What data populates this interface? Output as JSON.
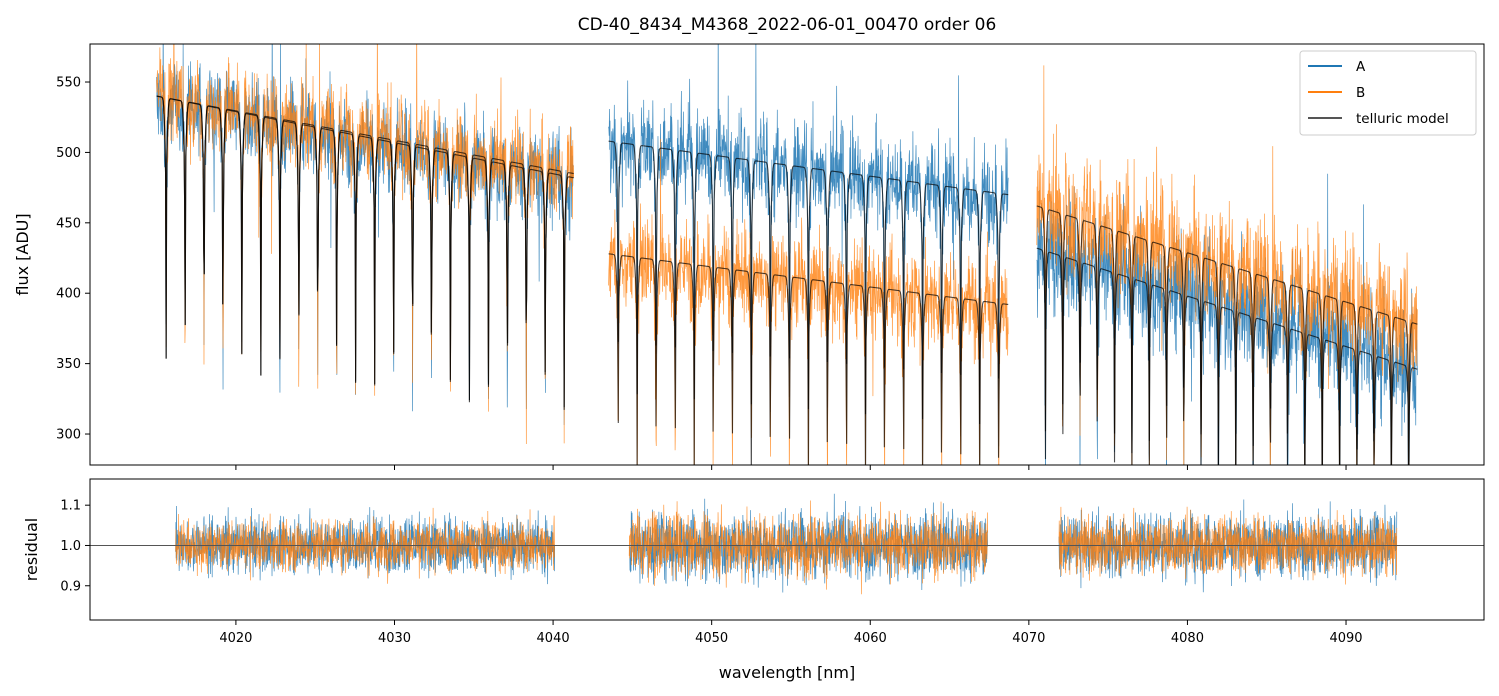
{
  "chart_data": {
    "type": "line",
    "title": "CD-40_8434_M4368_2022-06-01_00470  order 06",
    "xlabel": "wavelength [nm]",
    "xlim": [
      4010.8,
      4098.7
    ],
    "x_ticks": [
      4020,
      4030,
      4040,
      4050,
      4060,
      4070,
      4080,
      4090
    ],
    "x_tick_labels": [
      "4020",
      "4030",
      "4040",
      "4050",
      "4060",
      "4070",
      "4080",
      "4090"
    ],
    "colors": {
      "A": "#1f77b4",
      "B": "#ff7f0e",
      "model": "#000000"
    },
    "upper_panel": {
      "ylabel": "flux [ADU]",
      "ylim": [
        278,
        577
      ],
      "y_ticks": [
        300,
        350,
        400,
        450,
        500,
        550
      ],
      "y_tick_labels": [
        "300",
        "350",
        "400",
        "450",
        "500",
        "550"
      ],
      "legend": {
        "position": "top-right",
        "entries": [
          "A",
          "B",
          "telluric model"
        ]
      },
      "segments": [
        {
          "x_start": 4015.0,
          "x_end": 4041.3,
          "A_level": [
            538,
            478
          ],
          "B_level": [
            540,
            485
          ],
          "A_model": [
            540,
            482
          ],
          "B_model": [
            540,
            485
          ],
          "noise": 22
        },
        {
          "x_start": 4043.5,
          "x_end": 4068.7,
          "A_level": [
            508,
            470
          ],
          "B_level": [
            425,
            390
          ],
          "A_model": [
            508,
            470
          ],
          "B_model": [
            428,
            392
          ],
          "noise": 24
        },
        {
          "x_start": 4070.5,
          "x_end": 4094.5,
          "A_level": [
            432,
            350
          ],
          "B_level": [
            462,
            380
          ],
          "A_model": [
            432,
            346
          ],
          "B_model": [
            462,
            378
          ],
          "noise": 30
        }
      ],
      "telluric_lines_per_segment": [
        22,
        21,
        22
      ],
      "series": [
        {
          "name": "A",
          "description": "observed flux, nod position A"
        },
        {
          "name": "B",
          "description": "observed flux, nod position B"
        },
        {
          "name": "telluric model",
          "description": "fitted telluric model (one curve per nod)"
        }
      ]
    },
    "lower_panel": {
      "ylabel": "residual",
      "ylim": [
        0.815,
        1.165
      ],
      "y_ticks": [
        0.9,
        1.0,
        1.1
      ],
      "y_tick_labels": [
        "0.9",
        "1.0",
        "1.1"
      ],
      "reference_line": 1.0,
      "segments": [
        {
          "x_start": 4016.2,
          "x_end": 4040.1,
          "noise": 0.045
        },
        {
          "x_start": 4044.8,
          "x_end": 4067.4,
          "noise": 0.055
        },
        {
          "x_start": 4071.9,
          "x_end": 4093.2,
          "noise": 0.05
        }
      ]
    }
  }
}
